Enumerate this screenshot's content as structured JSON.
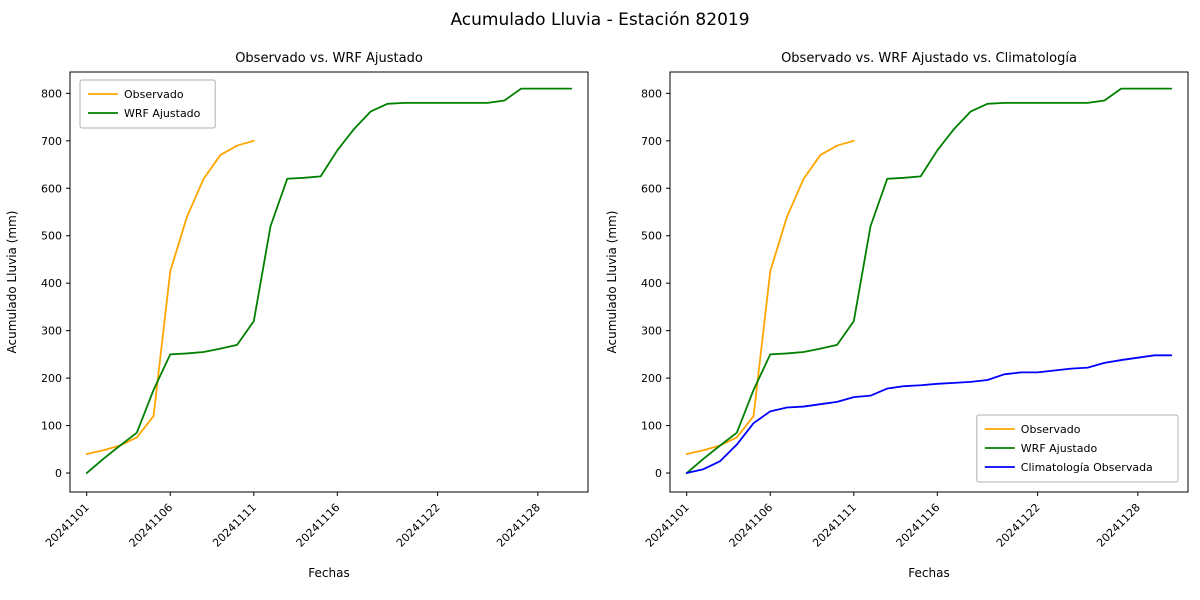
{
  "figure": {
    "suptitle": "Acumulado Lluvia - Estación 82019"
  },
  "colors": {
    "observado": "#FFA500",
    "wrf_ajustado": "#008000",
    "climatologia": "#0000FF",
    "axis": "#000000",
    "legend_border": "#b0b0b0"
  },
  "chart_data": [
    {
      "type": "line",
      "title": "Observado vs. WRF Ajustado",
      "xlabel": "Fechas",
      "ylabel": "Acumulado Lluvia (mm)",
      "xlim": [
        0,
        31
      ],
      "ylim": [
        -40,
        845
      ],
      "yticks": [
        0,
        100,
        200,
        300,
        400,
        500,
        600,
        700,
        800
      ],
      "xticks": [
        {
          "day": 1,
          "label": "20241101"
        },
        {
          "day": 6,
          "label": "20241106"
        },
        {
          "day": 11,
          "label": "20241111"
        },
        {
          "day": 16,
          "label": "20241116"
        },
        {
          "day": 22,
          "label": "20241122"
        },
        {
          "day": 28,
          "label": "20241128"
        }
      ],
      "dates": [
        "20241101",
        "20241102",
        "20241103",
        "20241104",
        "20241105",
        "20241106",
        "20241107",
        "20241108",
        "20241109",
        "20241110",
        "20241111",
        "20241112",
        "20241113",
        "20241114",
        "20241115",
        "20241116",
        "20241117",
        "20241118",
        "20241119",
        "20241120",
        "20241121",
        "20241122",
        "20241123",
        "20241124",
        "20241125",
        "20241126",
        "20241127",
        "20241128",
        "20241129",
        "20241130"
      ],
      "legend_position": "upper-left",
      "series": [
        {
          "name": "Observado",
          "color": "#FFA500",
          "values": [
            40,
            48,
            58,
            75,
            120,
            425,
            540,
            620,
            670,
            690,
            700
          ]
        },
        {
          "name": "WRF Ajustado",
          "color": "#008000",
          "values": [
            0,
            30,
            58,
            85,
            175,
            250,
            252,
            255,
            262,
            270,
            320,
            520,
            620,
            622,
            625,
            680,
            725,
            762,
            778,
            780,
            780,
            780,
            780,
            780,
            780,
            785,
            810,
            810,
            810,
            810
          ]
        }
      ]
    },
    {
      "type": "line",
      "title": "Observado vs. WRF Ajustado vs. Climatología",
      "xlabel": "Fechas",
      "ylabel": "Acumulado Lluvia (mm)",
      "xlim": [
        0,
        31
      ],
      "ylim": [
        -40,
        845
      ],
      "yticks": [
        0,
        100,
        200,
        300,
        400,
        500,
        600,
        700,
        800
      ],
      "xticks": [
        {
          "day": 1,
          "label": "20241101"
        },
        {
          "day": 6,
          "label": "20241106"
        },
        {
          "day": 11,
          "label": "20241111"
        },
        {
          "day": 16,
          "label": "20241116"
        },
        {
          "day": 22,
          "label": "20241122"
        },
        {
          "day": 28,
          "label": "20241128"
        }
      ],
      "dates": [
        "20241101",
        "20241102",
        "20241103",
        "20241104",
        "20241105",
        "20241106",
        "20241107",
        "20241108",
        "20241109",
        "20241110",
        "20241111",
        "20241112",
        "20241113",
        "20241114",
        "20241115",
        "20241116",
        "20241117",
        "20241118",
        "20241119",
        "20241120",
        "20241121",
        "20241122",
        "20241123",
        "20241124",
        "20241125",
        "20241126",
        "20241127",
        "20241128",
        "20241129",
        "20241130"
      ],
      "legend_position": "lower-right",
      "series": [
        {
          "name": "Observado",
          "color": "#FFA500",
          "values": [
            40,
            48,
            58,
            75,
            120,
            425,
            540,
            620,
            670,
            690,
            700
          ]
        },
        {
          "name": "WRF Ajustado",
          "color": "#008000",
          "values": [
            0,
            30,
            58,
            85,
            175,
            250,
            252,
            255,
            262,
            270,
            320,
            520,
            620,
            622,
            625,
            680,
            725,
            762,
            778,
            780,
            780,
            780,
            780,
            780,
            780,
            785,
            810,
            810,
            810,
            810
          ]
        },
        {
          "name": "Climatología Observada",
          "color": "#0000FF",
          "values": [
            0,
            8,
            25,
            60,
            105,
            130,
            138,
            140,
            145,
            150,
            160,
            163,
            178,
            183,
            185,
            188,
            190,
            192,
            196,
            208,
            212,
            212,
            216,
            220,
            222,
            232,
            238,
            243,
            248,
            248
          ]
        }
      ]
    }
  ]
}
